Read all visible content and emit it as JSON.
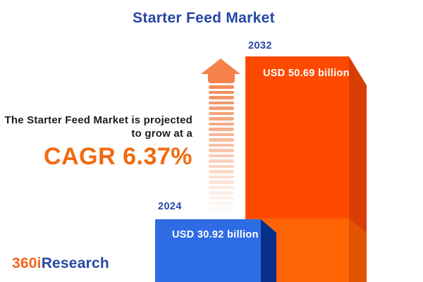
{
  "title": "Starter Feed Market",
  "description": {
    "line1": "The Starter Feed Market is projected",
    "line2": "to grow at a",
    "cagr": "CAGR 6.37%"
  },
  "bars": [
    {
      "year": "2024",
      "value": "USD 30.92 billion"
    },
    {
      "year": "2032",
      "value": "USD 50.69 billion"
    }
  ],
  "logo": {
    "prefix": "360i",
    "suffix": "Research"
  },
  "chart_data": {
    "type": "bar",
    "title": "Starter Feed Market",
    "categories": [
      "2024",
      "2032"
    ],
    "values": [
      30.92,
      50.69
    ],
    "unit": "USD billion",
    "series": [
      {
        "name": "Starter Feed Market size",
        "values": [
          30.92,
          50.69
        ]
      }
    ],
    "data_labels": [
      "USD 30.92 billion",
      "USD 50.69 billion"
    ],
    "cagr_percent": 6.37,
    "annotation": "The Starter Feed Market is projected to grow at a CAGR 6.37%",
    "xlabel": "",
    "ylabel": "",
    "grid": false,
    "legend": false,
    "style": "3d-infographic-bars"
  },
  "colors": {
    "background": "#FFFFFF",
    "title_blue": "#2547A6",
    "year_blue": "#2547A6",
    "text_dark": "#1C1C1C",
    "cagr_orange": "#F26A10",
    "bar_2032_front_top": "#FE4A01",
    "bar_2032_front_bottom": "#FF6405",
    "bar_2032_side_top": "#D83D03",
    "bar_2032_side_bottom": "#E25301",
    "bar_2024_front": "#2D6CE3",
    "bar_2024_side": "#04308A",
    "arrow_orange": "#F5814D",
    "arrow_stripe": "#F0854F",
    "logo_orange": "#F4641E",
    "logo_blue": "#2649A5",
    "value_text": "#FFFFFF"
  }
}
